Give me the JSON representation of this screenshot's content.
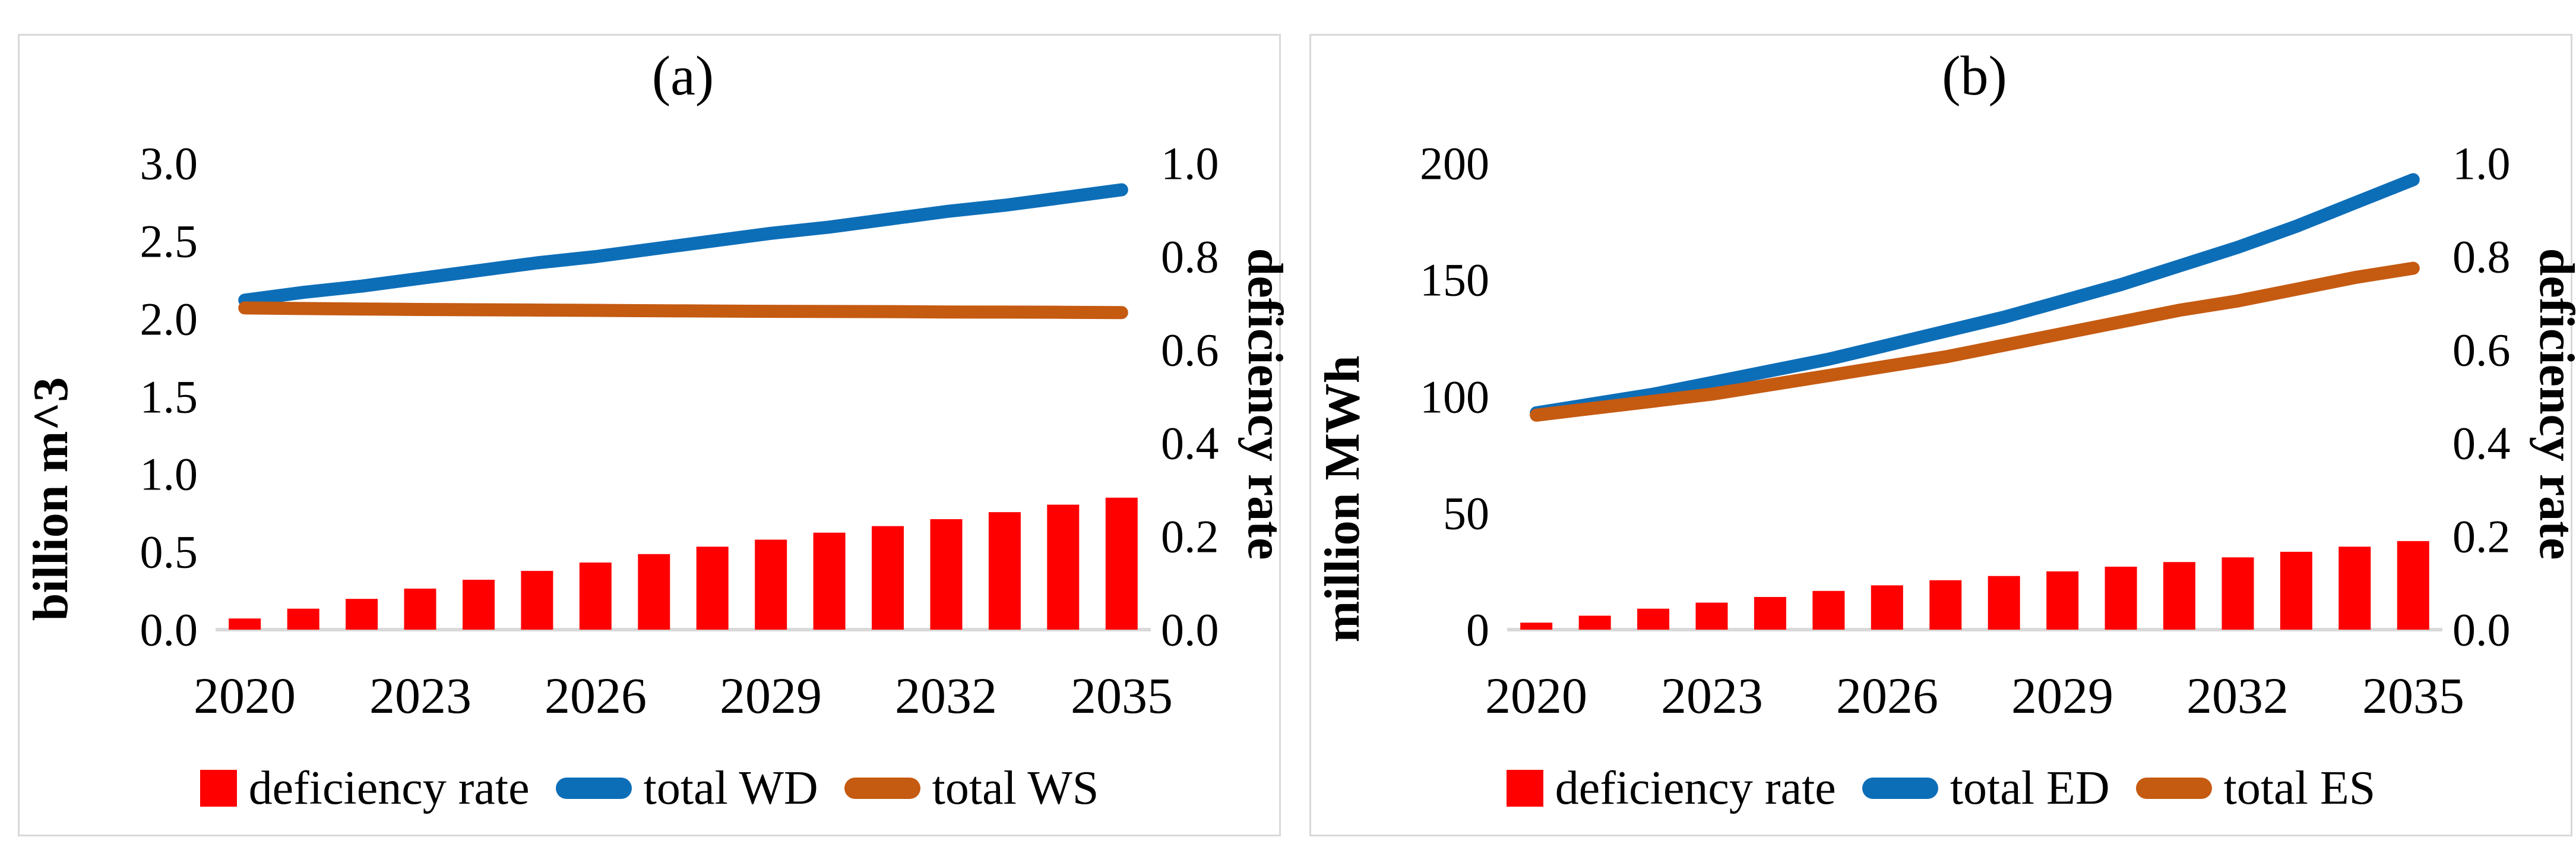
{
  "colors": {
    "bar_red": "#ff0000",
    "line_blue": "#0d6eb8",
    "line_orange": "#c55a11",
    "axis_gray": "#d9d9d9",
    "text_black": "#000000"
  },
  "chart_data": [
    {
      "type": "combo",
      "panel_label": "(a)",
      "title": "(a)",
      "grid": false,
      "legend_position": "bottom",
      "x": [
        2020,
        2021,
        2022,
        2023,
        2024,
        2025,
        2026,
        2027,
        2028,
        2029,
        2030,
        2031,
        2032,
        2033,
        2034,
        2035
      ],
      "x_axis_tick_labels": [
        "2020",
        "2023",
        "2026",
        "2029",
        "2032",
        "2035"
      ],
      "left_axis": {
        "title": "billion m^3",
        "min": 0,
        "max": 3,
        "tick_labels": [
          "3.0",
          "2.5",
          "2.0",
          "1.5",
          "1.0",
          "0.5",
          "0.0"
        ]
      },
      "right_axis": {
        "title": "deficiency rate",
        "min": 0,
        "max": 1,
        "tick_labels": [
          "1.0",
          "0.8",
          "0.6",
          "0.4",
          "0.2",
          "0.0"
        ]
      },
      "series": [
        {
          "name": "deficiency rate",
          "kind": "bar",
          "axis": "right",
          "color": "#ff0000",
          "values": [
            0.024,
            0.045,
            0.066,
            0.088,
            0.107,
            0.126,
            0.144,
            0.162,
            0.178,
            0.193,
            0.208,
            0.222,
            0.237,
            0.252,
            0.268,
            0.283
          ]
        },
        {
          "name": "total WD",
          "kind": "line",
          "axis": "left",
          "color": "#0d6eb8",
          "values": [
            2.12,
            2.17,
            2.21,
            2.26,
            2.31,
            2.36,
            2.4,
            2.45,
            2.5,
            2.55,
            2.59,
            2.64,
            2.69,
            2.73,
            2.78,
            2.83
          ]
        },
        {
          "name": "total WS",
          "kind": "line",
          "axis": "left",
          "color": "#c55a11",
          "values": [
            2.07,
            2.066,
            2.063,
            2.06,
            2.058,
            2.056,
            2.054,
            2.052,
            2.05,
            2.048,
            2.047,
            2.046,
            2.044,
            2.043,
            2.042,
            2.04
          ]
        }
      ]
    },
    {
      "type": "combo",
      "panel_label": "(b)",
      "title": "(b)",
      "grid": false,
      "legend_position": "bottom",
      "x": [
        2020,
        2021,
        2022,
        2023,
        2024,
        2025,
        2026,
        2027,
        2028,
        2029,
        2030,
        2031,
        2032,
        2033,
        2034,
        2035
      ],
      "x_axis_tick_labels": [
        "2020",
        "2023",
        "2026",
        "2029",
        "2032",
        "2035"
      ],
      "left_axis": {
        "title": "million MWh",
        "min": 0,
        "max": 200,
        "tick_labels": [
          "200",
          "150",
          "100",
          "50",
          "0"
        ]
      },
      "right_axis": {
        "title": "deficiency rate",
        "min": 0,
        "max": 1,
        "tick_labels": [
          "1.0",
          "0.8",
          "0.6",
          "0.4",
          "0.2",
          "0.0"
        ]
      },
      "series": [
        {
          "name": "deficiency rate",
          "kind": "bar",
          "axis": "right",
          "color": "#ff0000",
          "values": [
            0.015,
            0.03,
            0.045,
            0.058,
            0.07,
            0.083,
            0.095,
            0.106,
            0.115,
            0.125,
            0.135,
            0.145,
            0.155,
            0.167,
            0.178,
            0.19
          ]
        },
        {
          "name": "total ED",
          "kind": "line",
          "axis": "left",
          "color": "#0d6eb8",
          "values": [
            93,
            97,
            101,
            106,
            111,
            116,
            122,
            128,
            134,
            141,
            148,
            156,
            164,
            173,
            183,
            193
          ]
        },
        {
          "name": "total ES",
          "kind": "line",
          "axis": "left",
          "color": "#c55a11",
          "values": [
            92,
            95,
            98,
            101,
            105,
            109,
            113,
            117,
            122,
            127,
            132,
            137,
            141,
            146,
            151,
            155
          ]
        }
      ]
    }
  ]
}
